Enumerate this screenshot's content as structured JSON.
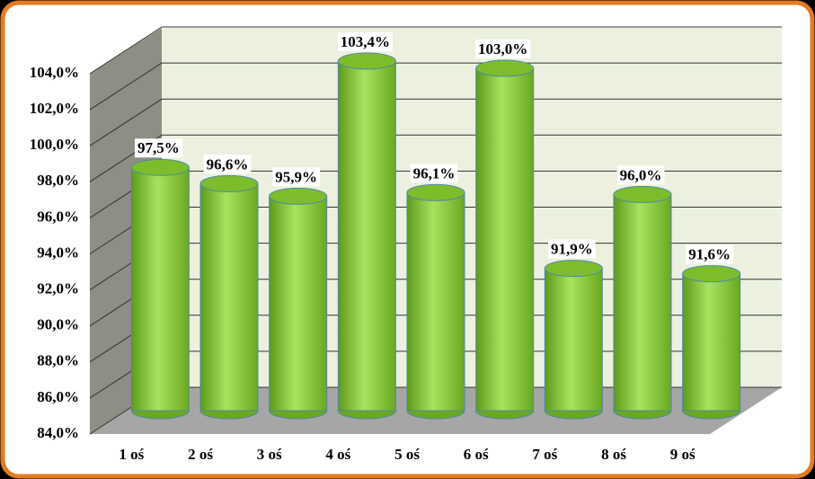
{
  "chart_data": {
    "type": "bar",
    "categories": [
      "1 oś",
      "2 oś",
      "3 oś",
      "4 oś",
      "5 oś",
      "6 oś",
      "7 oś",
      "8 oś",
      "9 oś"
    ],
    "values": [
      97.5,
      96.6,
      95.9,
      103.4,
      96.1,
      103.0,
      91.9,
      96.0,
      91.6
    ],
    "value_labels": [
      "97,5%",
      "96,6%",
      "95,9%",
      "103,4%",
      "96,1%",
      "103,0%",
      "91,9%",
      "96,0%",
      "91,6%"
    ],
    "color": "#8ccf3c",
    "ylim": [
      84,
      104
    ],
    "yticks": [
      {
        "value": 84,
        "label": "84,0%"
      },
      {
        "value": 86,
        "label": "86,0%"
      },
      {
        "value": 88,
        "label": "88,0%"
      },
      {
        "value": 90,
        "label": "90,0%"
      },
      {
        "value": 92,
        "label": "92,0%"
      },
      {
        "value": 94,
        "label": "94,0%"
      },
      {
        "value": 96,
        "label": "96,0%"
      },
      {
        "value": 98,
        "label": "98,0%"
      },
      {
        "value": 100,
        "label": "100,0%"
      },
      {
        "value": 102,
        "label": "102,0%"
      },
      {
        "value": 104,
        "label": "104,0%"
      }
    ],
    "grid": true
  }
}
